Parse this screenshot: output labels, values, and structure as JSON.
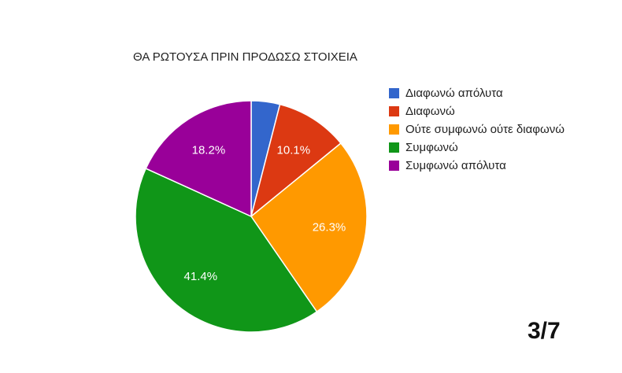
{
  "chart_data": {
    "type": "pie",
    "title": "ΘΑ ΡΩΤΟΥΣΑ ΠΡΙΝ ΠΡΟΔΩΣΩ ΣΤΟΙΧΕΙΑ",
    "legend_position": "right",
    "slices": [
      {
        "label": "Διαφωνώ απόλυτα",
        "value": 4.0,
        "color": "#3366cc",
        "data_label": ""
      },
      {
        "label": "Διαφωνώ",
        "value": 10.1,
        "color": "#dc3912",
        "data_label": "10.1%"
      },
      {
        "label": "Ούτε συμφωνώ ούτε διαφωνώ",
        "value": 26.3,
        "color": "#ff9900",
        "data_label": "26.3%"
      },
      {
        "label": "Συμφωνώ",
        "value": 41.4,
        "color": "#109618",
        "data_label": "41.4%"
      },
      {
        "label": "Συμφωνώ απόλυτα",
        "value": 18.2,
        "color": "#990099",
        "data_label": "18.2%"
      }
    ]
  },
  "page_indicator": "3/7"
}
